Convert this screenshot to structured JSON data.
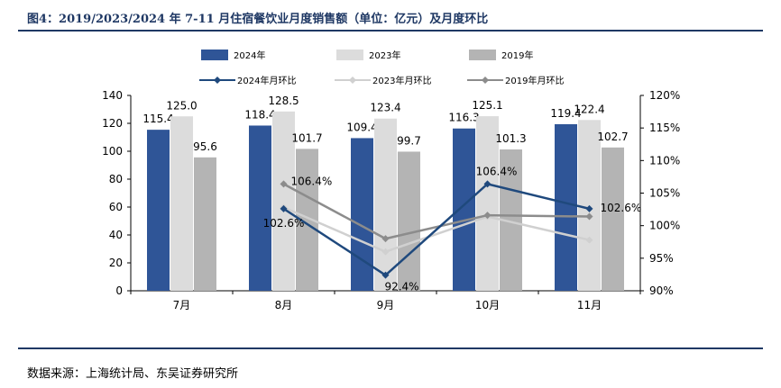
{
  "title": "图4：2019/2023/2024 年 7-11 月住宿餐饮业月度销售额（单位：亿元）及月度环比",
  "source": "数据来源：上海统计局、东吴证券研究所",
  "colors": {
    "bar_2024": "#2f5597",
    "bar_2023": "#dcdcdc",
    "bar_2019": "#b4b4b4",
    "line_2024": "#1f497d",
    "line_2023": "#d0d0d0",
    "line_2019": "#8c8c8c",
    "title": "#1f3864"
  },
  "chart_data": {
    "type": "bar",
    "categories": [
      "7月",
      "8月",
      "9月",
      "10月",
      "11月"
    ],
    "series": [
      {
        "name": "2024年",
        "kind": "bar",
        "axis": "left",
        "values": [
          115.4,
          118.4,
          109.4,
          116.3,
          119.4
        ]
      },
      {
        "name": "2023年",
        "kind": "bar",
        "axis": "left",
        "values": [
          125.0,
          128.5,
          123.4,
          125.1,
          122.4
        ]
      },
      {
        "name": "2019年",
        "kind": "bar",
        "axis": "left",
        "values": [
          95.6,
          101.7,
          99.7,
          101.3,
          102.7
        ]
      },
      {
        "name": "2024年月环比",
        "kind": "line",
        "axis": "right",
        "values": [
          null,
          102.6,
          92.4,
          106.4,
          102.6
        ]
      },
      {
        "name": "2023年月环比",
        "kind": "line",
        "axis": "right",
        "values": [
          null,
          102.8,
          96.0,
          101.4,
          97.8
        ]
      },
      {
        "name": "2019年月环比",
        "kind": "line",
        "axis": "right",
        "values": [
          null,
          106.4,
          98.0,
          101.6,
          101.4
        ]
      }
    ],
    "bar_labels": [
      [
        "115.4",
        "118.4",
        "109.4",
        "116.3",
        "119.4"
      ],
      [
        "125.0",
        "128.5",
        "123.4",
        "125.1",
        "122.4"
      ],
      [
        "95.6",
        "101.7",
        "99.7",
        "101.3",
        "102.7"
      ]
    ],
    "line_labels": [
      {
        "series": 0,
        "index": 1,
        "text": "102.6%"
      },
      {
        "series": 0,
        "index": 2,
        "text": "92.4%"
      },
      {
        "series": 0,
        "index": 3,
        "text": "106.4%"
      },
      {
        "series": 0,
        "index": 4,
        "text": "102.6%"
      },
      {
        "series": 2,
        "index": 1,
        "text": "106.4%"
      }
    ],
    "ylim_left": [
      0,
      140
    ],
    "yticks_left": [
      "0",
      "20",
      "40",
      "60",
      "80",
      "100",
      "120",
      "140"
    ],
    "ylim_right": [
      90,
      120
    ],
    "yticks_right": [
      "90%",
      "95%",
      "100%",
      "105%",
      "110%",
      "115%",
      "120%"
    ],
    "legend_position": "top",
    "grid": false
  }
}
